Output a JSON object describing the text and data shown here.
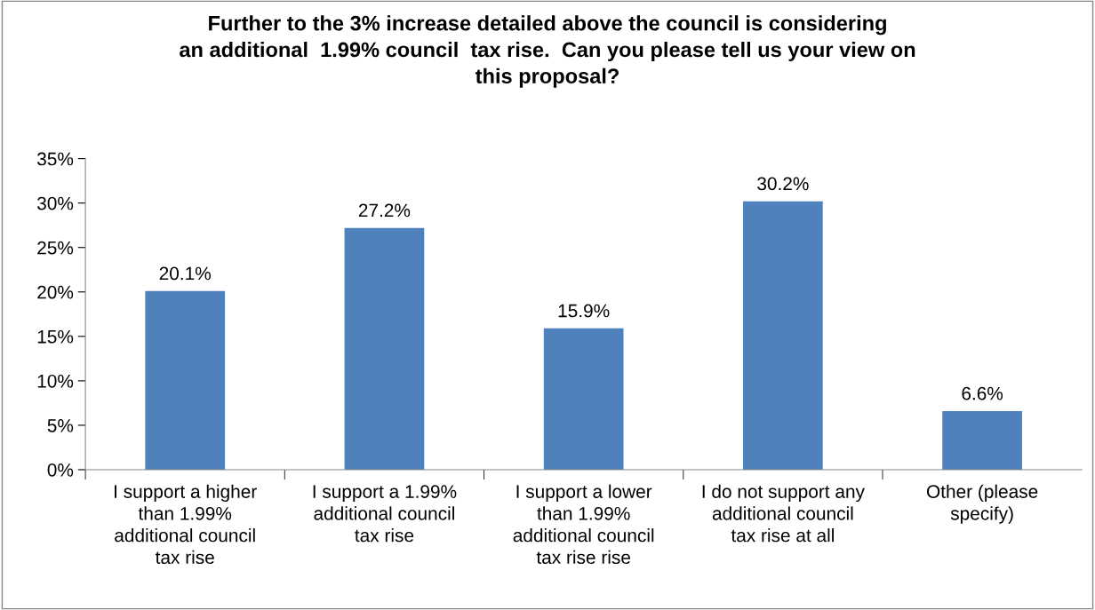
{
  "chart_data": {
    "type": "bar",
    "title": "Further to the 3% increase detailed above the council is considering\nan additional  1.99% council  tax rise.  Can you please tell us your view on\nthis proposal?",
    "categories": [
      "I support a higher\nthan 1.99%\nadditional council\ntax rise",
      "I support a 1.99%\nadditional council\ntax rise",
      "I support a lower\nthan 1.99%\nadditional council\ntax rise rise",
      "I do not support any\nadditional council\ntax rise at all",
      "Other (please\nspecify)"
    ],
    "values": [
      20.1,
      27.2,
      15.9,
      30.2,
      6.6
    ],
    "value_labels": [
      "20.1%",
      "27.2%",
      "15.9%",
      "30.2%",
      "6.6%"
    ],
    "color": "#4f81bd",
    "ylim": [
      0,
      35
    ],
    "yticks": [
      {
        "value": 0,
        "label": "0%"
      },
      {
        "value": 5,
        "label": "5%"
      },
      {
        "value": 10,
        "label": "10%"
      },
      {
        "value": 15,
        "label": "15%"
      },
      {
        "value": 20,
        "label": "20%"
      },
      {
        "value": 25,
        "label": "25%"
      },
      {
        "value": 30,
        "label": "30%"
      },
      {
        "value": 35,
        "label": "35%"
      }
    ],
    "grid": false,
    "legend": false
  }
}
